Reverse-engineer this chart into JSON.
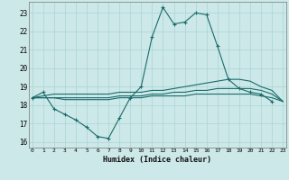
{
  "xlabel": "Humidex (Indice chaleur)",
  "x_ticks": [
    0,
    1,
    2,
    3,
    4,
    5,
    6,
    7,
    8,
    9,
    10,
    11,
    12,
    13,
    14,
    15,
    16,
    17,
    18,
    19,
    20,
    21,
    22,
    23
  ],
  "ylim": [
    15.7,
    23.6
  ],
  "xlim": [
    -0.3,
    23.3
  ],
  "yticks": [
    16,
    17,
    18,
    19,
    20,
    21,
    22,
    23
  ],
  "bg_color": "#cce8e8",
  "grid_color": "#aad4d4",
  "line_color": "#1a6b6b",
  "line1_x": [
    0,
    1,
    2,
    3,
    4,
    5,
    6,
    7,
    8,
    9,
    10,
    11,
    12,
    13,
    14,
    15,
    16,
    17,
    18,
    19,
    20,
    21,
    22
  ],
  "line1_y": [
    18.4,
    18.7,
    17.8,
    17.5,
    17.2,
    16.8,
    16.3,
    16.2,
    17.3,
    18.4,
    19.0,
    21.7,
    23.3,
    22.4,
    22.5,
    23.0,
    22.9,
    21.2,
    19.4,
    18.9,
    18.7,
    18.6,
    18.2
  ],
  "line2_x": [
    0,
    1,
    2,
    3,
    4,
    5,
    6,
    7,
    8,
    9,
    10,
    11,
    12,
    13,
    14,
    15,
    16,
    17,
    18,
    19,
    20,
    21,
    22,
    23
  ],
  "line2_y": [
    18.4,
    18.5,
    18.6,
    18.6,
    18.6,
    18.6,
    18.6,
    18.6,
    18.7,
    18.7,
    18.7,
    18.8,
    18.8,
    18.9,
    19.0,
    19.1,
    19.2,
    19.3,
    19.4,
    19.4,
    19.3,
    19.0,
    18.8,
    18.2
  ],
  "line3_x": [
    0,
    1,
    2,
    3,
    4,
    5,
    6,
    7,
    8,
    9,
    10,
    11,
    12,
    13,
    14,
    15,
    16,
    17,
    18,
    19,
    20,
    21,
    22,
    23
  ],
  "line3_y": [
    18.4,
    18.4,
    18.4,
    18.4,
    18.4,
    18.4,
    18.4,
    18.4,
    18.5,
    18.5,
    18.5,
    18.6,
    18.6,
    18.7,
    18.7,
    18.8,
    18.8,
    18.9,
    18.9,
    18.9,
    18.9,
    18.8,
    18.6,
    18.2
  ],
  "line4_x": [
    0,
    1,
    2,
    3,
    4,
    5,
    6,
    7,
    8,
    9,
    10,
    11,
    12,
    13,
    14,
    15,
    16,
    17,
    18,
    19,
    20,
    21,
    22,
    23
  ],
  "line4_y": [
    18.4,
    18.4,
    18.4,
    18.3,
    18.3,
    18.3,
    18.3,
    18.3,
    18.4,
    18.4,
    18.4,
    18.5,
    18.5,
    18.5,
    18.5,
    18.6,
    18.6,
    18.6,
    18.6,
    18.6,
    18.6,
    18.5,
    18.4,
    18.2
  ]
}
